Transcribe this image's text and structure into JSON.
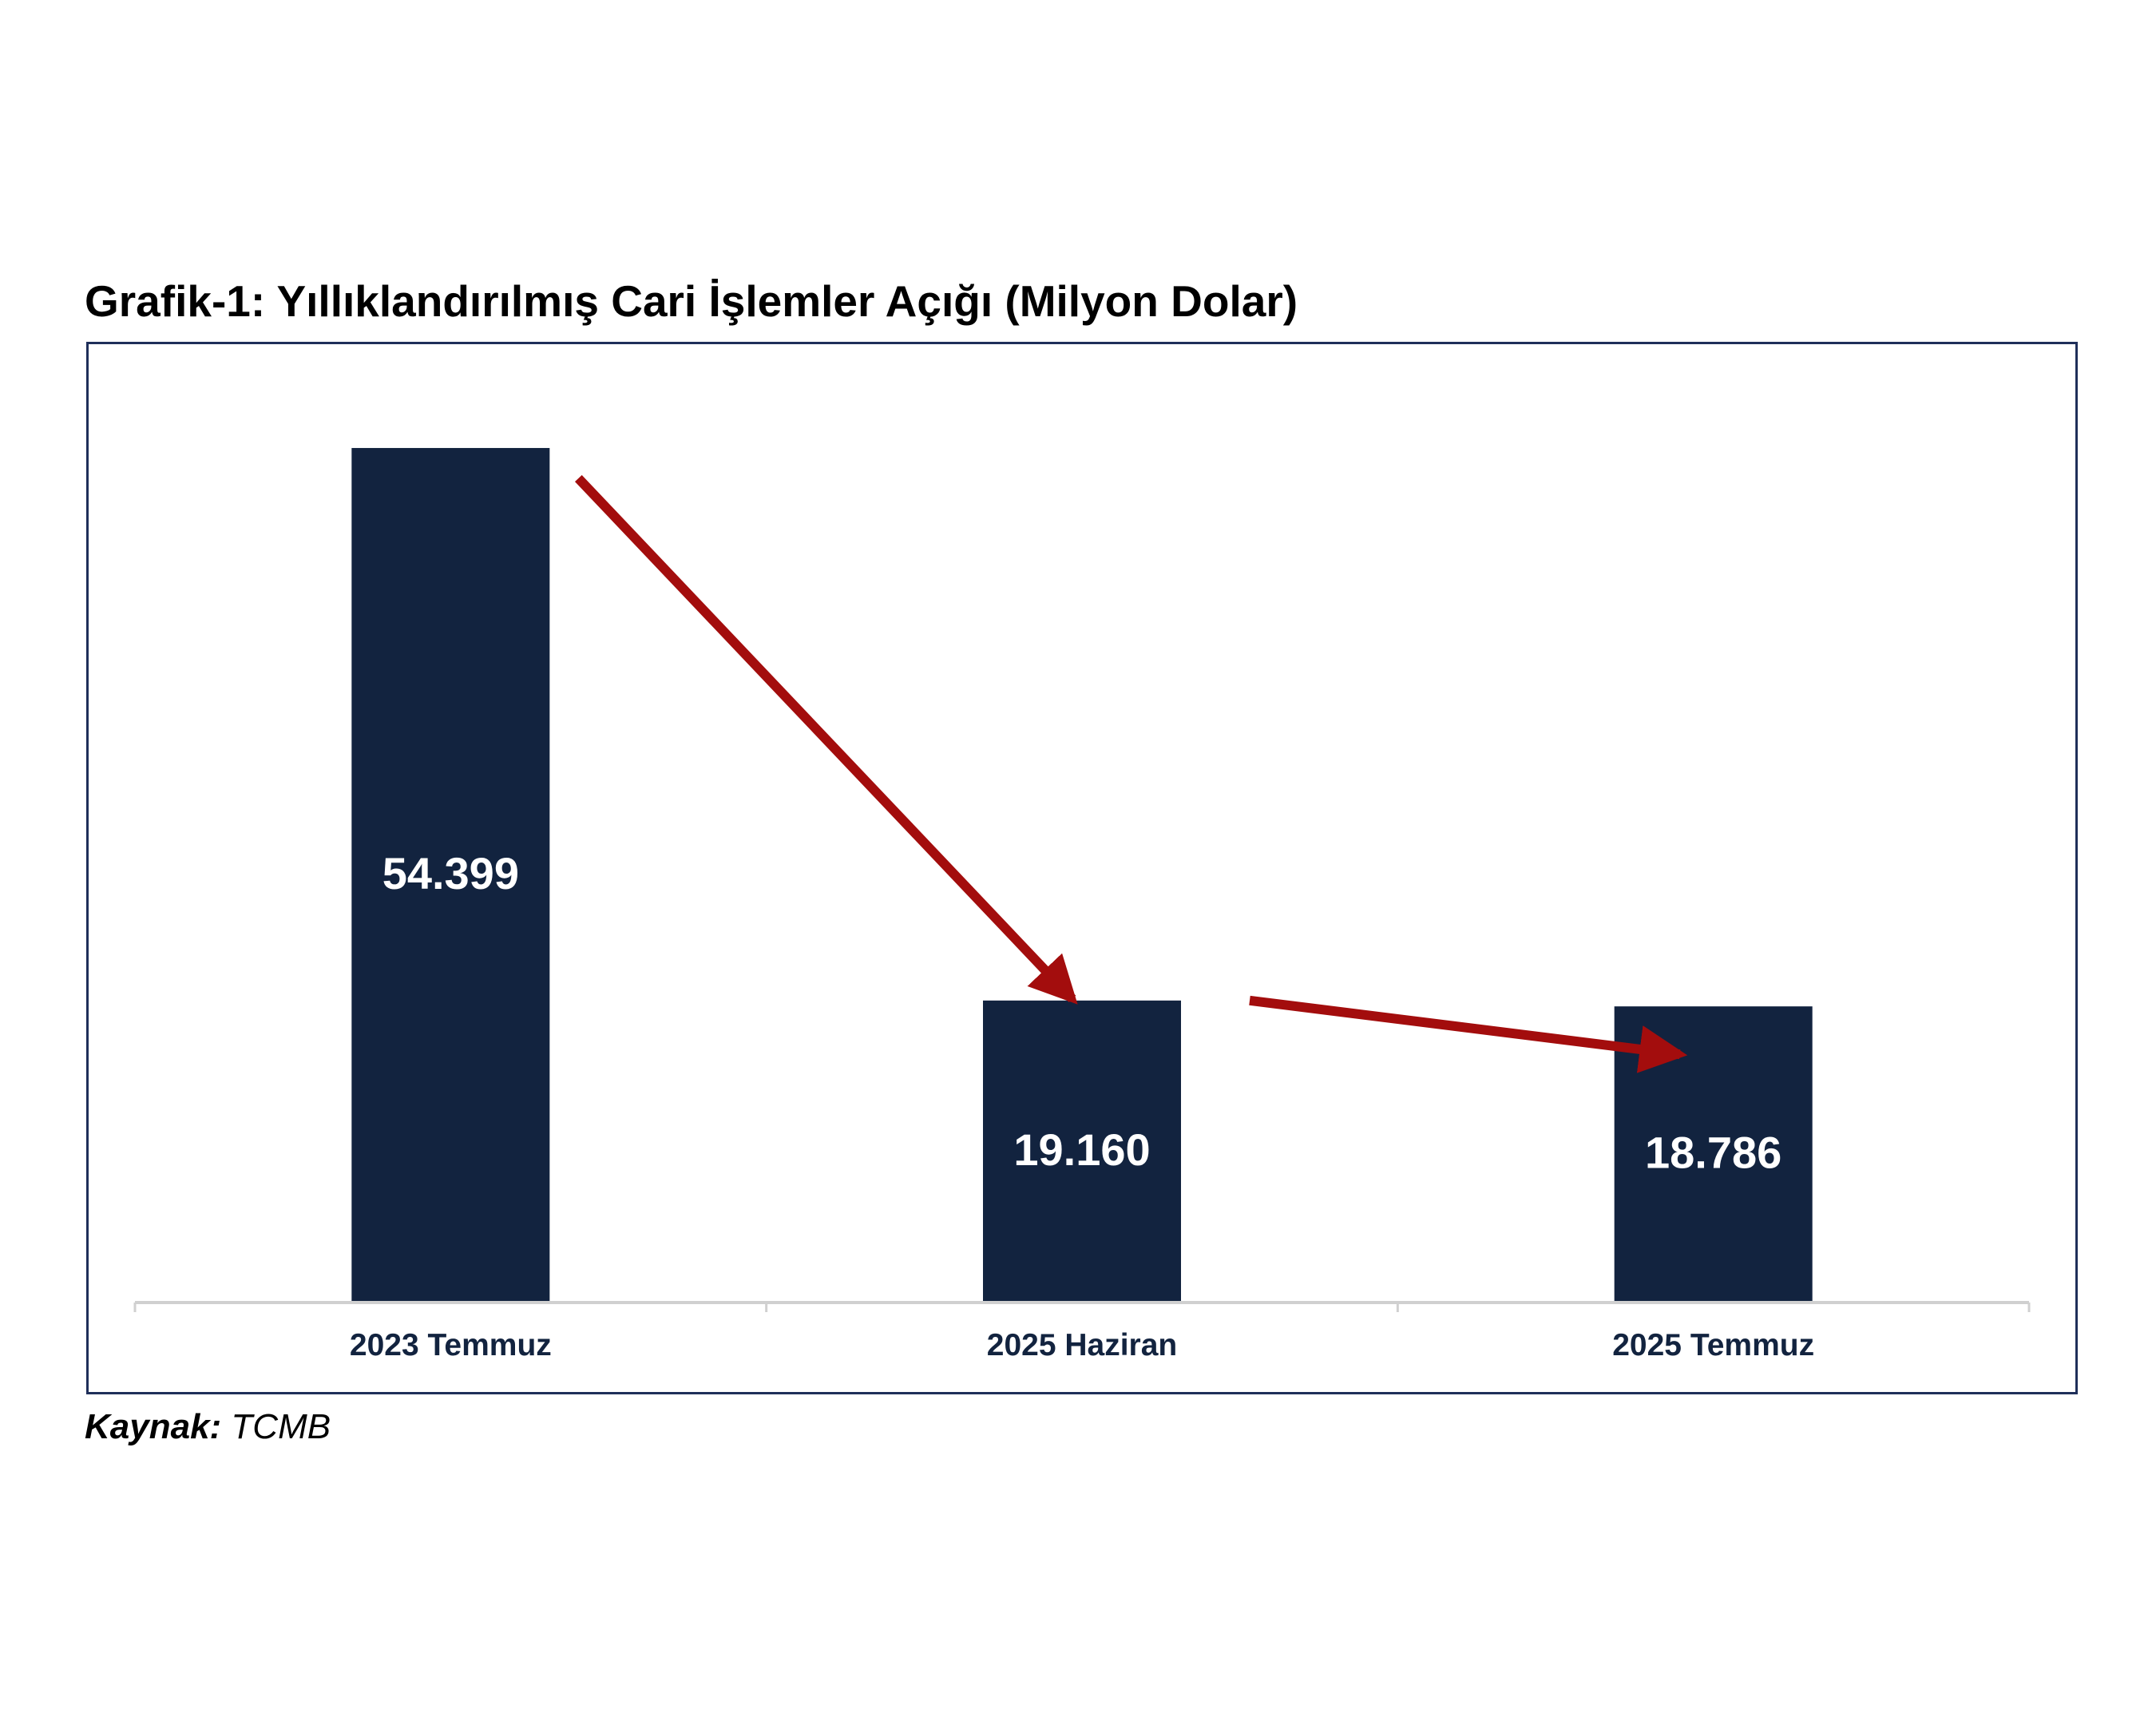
{
  "colors": {
    "bar": "#12233f",
    "bar_label": "#ffffff",
    "arrow": "#a30d0d",
    "axis": "#d0d0d0",
    "frame": "#1f2f5a",
    "tick_label": "#12233f"
  },
  "chart_data": {
    "type": "bar",
    "title": "Grafik-1: Yıllıklandırılmış Cari İşlemler Açığı (Milyon Dolar)",
    "categories": [
      "2023 Temmuz",
      "2025 Haziran",
      "2025 Temmuz"
    ],
    "values": [
      54399,
      19160,
      18786
    ],
    "value_labels": [
      "54.399",
      "19.160",
      "18.786"
    ],
    "xlabel": "",
    "ylabel": "",
    "ylim": [
      0,
      60000
    ],
    "grid": false,
    "legend": "none",
    "annotations": [
      "arrow from 2023 Temmuz to 2025 Haziran",
      "arrow from 2025 Haziran to 2025 Temmuz"
    ]
  },
  "source": {
    "label": "Kaynak:",
    "value": "TCMB"
  }
}
